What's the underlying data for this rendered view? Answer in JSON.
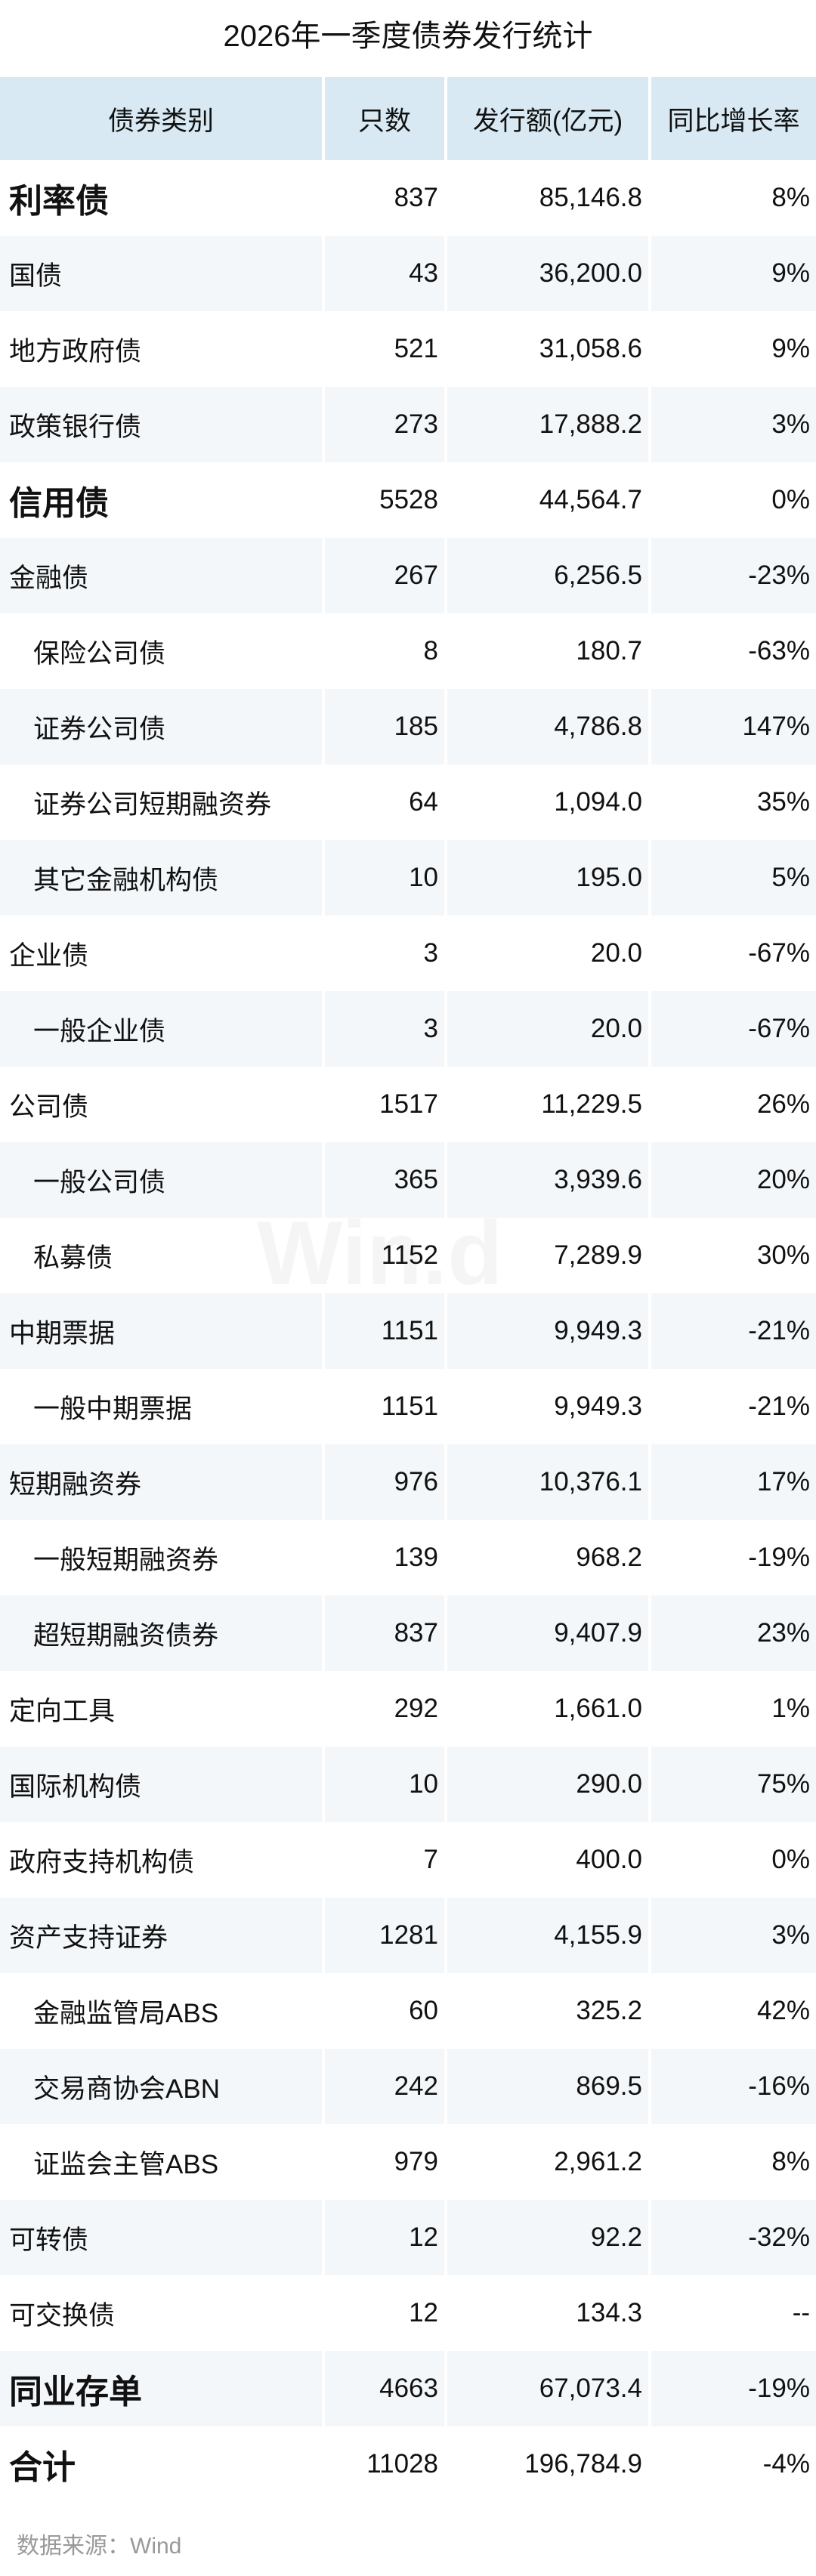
{
  "title": "2026年一季度债券发行统计",
  "headers": [
    "债券类别",
    "只数",
    "发行额(亿元)",
    "同比增长率"
  ],
  "rows": [
    {
      "name": "利率债",
      "count": "837",
      "amount": "85,146.8",
      "yoy": "8%",
      "level": "major"
    },
    {
      "name": "国债",
      "count": "43",
      "amount": "36,200.0",
      "yoy": "9%",
      "level": "l1"
    },
    {
      "name": "地方政府债",
      "count": "521",
      "amount": "31,058.6",
      "yoy": "9%",
      "level": "l1"
    },
    {
      "name": "政策银行债",
      "count": "273",
      "amount": "17,888.2",
      "yoy": "3%",
      "level": "l1"
    },
    {
      "name": "信用债",
      "count": "5528",
      "amount": "44,564.7",
      "yoy": "0%",
      "level": "major"
    },
    {
      "name": "金融债",
      "count": "267",
      "amount": "6,256.5",
      "yoy": "-23%",
      "level": "l1"
    },
    {
      "name": "保险公司债",
      "count": "8",
      "amount": "180.7",
      "yoy": "-63%",
      "level": "l2"
    },
    {
      "name": "证券公司债",
      "count": "185",
      "amount": "4,786.8",
      "yoy": "147%",
      "level": "l2"
    },
    {
      "name": "证券公司短期融资券",
      "count": "64",
      "amount": "1,094.0",
      "yoy": "35%",
      "level": "l2"
    },
    {
      "name": "其它金融机构债",
      "count": "10",
      "amount": "195.0",
      "yoy": "5%",
      "level": "l2"
    },
    {
      "name": "企业债",
      "count": "3",
      "amount": "20.0",
      "yoy": "-67%",
      "level": "l1"
    },
    {
      "name": "一般企业债",
      "count": "3",
      "amount": "20.0",
      "yoy": "-67%",
      "level": "l2"
    },
    {
      "name": "公司债",
      "count": "1517",
      "amount": "11,229.5",
      "yoy": "26%",
      "level": "l1"
    },
    {
      "name": "一般公司债",
      "count": "365",
      "amount": "3,939.6",
      "yoy": "20%",
      "level": "l2"
    },
    {
      "name": "私募债",
      "count": "1152",
      "amount": "7,289.9",
      "yoy": "30%",
      "level": "l2"
    },
    {
      "name": "中期票据",
      "count": "1151",
      "amount": "9,949.3",
      "yoy": "-21%",
      "level": "l1"
    },
    {
      "name": "一般中期票据",
      "count": "1151",
      "amount": "9,949.3",
      "yoy": "-21%",
      "level": "l2"
    },
    {
      "name": "短期融资券",
      "count": "976",
      "amount": "10,376.1",
      "yoy": "17%",
      "level": "l1"
    },
    {
      "name": "一般短期融资券",
      "count": "139",
      "amount": "968.2",
      "yoy": "-19%",
      "level": "l2"
    },
    {
      "name": "超短期融资债券",
      "count": "837",
      "amount": "9,407.9",
      "yoy": "23%",
      "level": "l2"
    },
    {
      "name": "定向工具",
      "count": "292",
      "amount": "1,661.0",
      "yoy": "1%",
      "level": "l1"
    },
    {
      "name": "国际机构债",
      "count": "10",
      "amount": "290.0",
      "yoy": "75%",
      "level": "l1"
    },
    {
      "name": "政府支持机构债",
      "count": "7",
      "amount": "400.0",
      "yoy": "0%",
      "level": "l1"
    },
    {
      "name": "资产支持证券",
      "count": "1281",
      "amount": "4,155.9",
      "yoy": "3%",
      "level": "l1"
    },
    {
      "name": "金融监管局ABS",
      "count": "60",
      "amount": "325.2",
      "yoy": "42%",
      "level": "l2"
    },
    {
      "name": "交易商协会ABN",
      "count": "242",
      "amount": "869.5",
      "yoy": "-16%",
      "level": "l2"
    },
    {
      "name": "证监会主管ABS",
      "count": "979",
      "amount": "2,961.2",
      "yoy": "8%",
      "level": "l2"
    },
    {
      "name": "可转债",
      "count": "12",
      "amount": "92.2",
      "yoy": "-32%",
      "level": "l1"
    },
    {
      "name": "可交换债",
      "count": "12",
      "amount": "134.3",
      "yoy": "--",
      "level": "l1"
    },
    {
      "name": "同业存单",
      "count": "4663",
      "amount": "67,073.4",
      "yoy": "-19%",
      "level": "major"
    },
    {
      "name": "合计",
      "count": "11028",
      "amount": "196,784.9",
      "yoy": "-4%",
      "level": "major"
    }
  ],
  "source": "数据来源：Wind",
  "watermark": "Win.d",
  "colors": {
    "header_bg": "#d8e9f3",
    "alt_row_bg": "#f3f7fa",
    "source_text": "#999999"
  }
}
